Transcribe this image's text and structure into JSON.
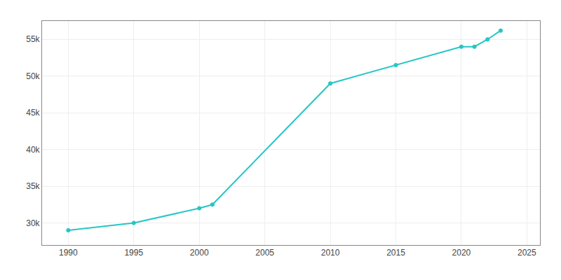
{
  "chart_data": {
    "type": "line",
    "x": [
      1990,
      1995,
      2000,
      2001,
      2010,
      2015,
      2020,
      2021,
      2022,
      2023
    ],
    "values": [
      29000,
      30000,
      32000,
      32500,
      49000,
      51500,
      54000,
      54000,
      55000,
      56200
    ],
    "color": "#26c6c6",
    "marker": "circle",
    "xlim": [
      1988,
      2026
    ],
    "xticks": [
      1990,
      1995,
      2000,
      2005,
      2010,
      2015,
      2020,
      2025
    ],
    "ylim": [
      27000,
      57500
    ],
    "yticks": [
      {
        "value": 30000,
        "label": "30k"
      },
      {
        "value": 35000,
        "label": "35k"
      },
      {
        "value": 40000,
        "label": "40k"
      },
      {
        "value": 45000,
        "label": "45k"
      },
      {
        "value": 50000,
        "label": "50k"
      },
      {
        "value": 55000,
        "label": "55k"
      }
    ],
    "grid": true
  }
}
